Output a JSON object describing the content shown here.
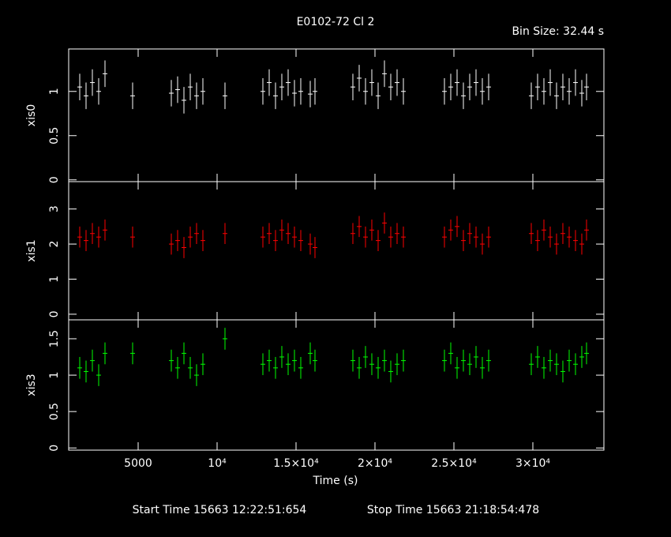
{
  "chart_data": [
    {
      "type": "errorbar",
      "title": "E0102-72 Cl 2",
      "subtitle": "Bin Size: 32.44 s",
      "ylabel": "xis0",
      "color": "#ffffff",
      "xlim": [
        600,
        34500
      ],
      "ylim": [
        -0.02,
        1.48
      ],
      "yticks": [
        0,
        0.5,
        1
      ],
      "yerr": 0.15,
      "x": [
        1300,
        1700,
        2100,
        2500,
        2900,
        4650,
        7100,
        7500,
        7900,
        8300,
        8700,
        9100,
        10500,
        12900,
        13300,
        13700,
        14100,
        14500,
        14900,
        15300,
        15900,
        16200,
        18600,
        19000,
        19400,
        19800,
        20200,
        20600,
        21000,
        21400,
        21800,
        24400,
        24800,
        25200,
        25600,
        26000,
        26400,
        26800,
        27200,
        29900,
        30300,
        30700,
        31100,
        31500,
        31900,
        32300,
        32700,
        33100,
        33400
      ],
      "values": [
        1.05,
        0.95,
        1.1,
        1.0,
        1.2,
        0.95,
        0.98,
        1.02,
        0.9,
        1.05,
        0.95,
        1.0,
        0.95,
        1.0,
        1.1,
        0.95,
        1.05,
        1.1,
        0.98,
        1.0,
        0.97,
        1.0,
        1.05,
        1.15,
        1.0,
        1.1,
        0.95,
        1.2,
        1.05,
        1.1,
        1.0,
        1.0,
        1.05,
        1.1,
        0.95,
        1.05,
        1.1,
        1.0,
        1.05,
        0.95,
        1.05,
        1.0,
        1.1,
        0.95,
        1.05,
        1.0,
        1.1,
        0.98,
        1.05
      ]
    },
    {
      "type": "errorbar",
      "ylabel": "xis1",
      "color": "#ff0000",
      "xlim": [
        600,
        34500
      ],
      "ylim": [
        -0.16,
        3.78
      ],
      "yticks": [
        0,
        1,
        2,
        3
      ],
      "yerr": 0.3,
      "x": [
        1300,
        1700,
        2100,
        2500,
        2900,
        4650,
        7100,
        7500,
        7900,
        8300,
        8700,
        9100,
        10500,
        12900,
        13300,
        13700,
        14100,
        14500,
        14900,
        15300,
        15900,
        16200,
        18600,
        19000,
        19400,
        19800,
        20200,
        20600,
        21000,
        21400,
        21800,
        24400,
        24800,
        25200,
        25600,
        26000,
        26400,
        26800,
        27200,
        29900,
        30300,
        30700,
        31100,
        31500,
        31900,
        32300,
        32700,
        33100,
        33400
      ],
      "values": [
        2.2,
        2.1,
        2.3,
        2.2,
        2.4,
        2.2,
        2.0,
        2.1,
        1.9,
        2.2,
        2.3,
        2.1,
        2.3,
        2.2,
        2.3,
        2.1,
        2.4,
        2.3,
        2.2,
        2.1,
        2.0,
        1.9,
        2.3,
        2.5,
        2.2,
        2.4,
        2.1,
        2.6,
        2.2,
        2.3,
        2.2,
        2.2,
        2.4,
        2.5,
        2.1,
        2.3,
        2.2,
        2.0,
        2.2,
        2.3,
        2.1,
        2.4,
        2.2,
        2.0,
        2.3,
        2.2,
        2.1,
        2.0,
        2.4
      ]
    },
    {
      "type": "errorbar",
      "ylabel": "xis3",
      "color": "#00ff00",
      "xlabel": "Time (s)",
      "start_time": "Start Time 15663 12:22:51:654",
      "stop_time": "Stop Time 15663 21:18:54:478",
      "xlim": [
        600,
        34500
      ],
      "ylim": [
        -0.03,
        1.76
      ],
      "yticks": [
        0,
        0.5,
        1,
        1.5
      ],
      "yerr": 0.15,
      "xticks": [
        5000,
        {
          "value": 10000,
          "label": "10⁴"
        },
        {
          "value": 15000,
          "label": "1.5×10⁴"
        },
        {
          "value": 20000,
          "label": "2×10⁴"
        },
        {
          "value": 25000,
          "label": "2.5×10⁴"
        },
        {
          "value": 30000,
          "label": "3×10⁴"
        }
      ],
      "x": [
        1300,
        1700,
        2100,
        2500,
        2900,
        4650,
        7100,
        7500,
        7900,
        8300,
        8700,
        9100,
        10500,
        12900,
        13300,
        13700,
        14100,
        14500,
        14900,
        15300,
        15900,
        16200,
        18600,
        19000,
        19400,
        19800,
        20200,
        20600,
        21000,
        21400,
        21800,
        24400,
        24800,
        25200,
        25600,
        26000,
        26400,
        26800,
        27200,
        29900,
        30300,
        30700,
        31100,
        31500,
        31900,
        32300,
        32700,
        33100,
        33400
      ],
      "values": [
        1.1,
        1.05,
        1.2,
        1.0,
        1.3,
        1.3,
        1.2,
        1.1,
        1.3,
        1.1,
        1.0,
        1.15,
        1.5,
        1.15,
        1.2,
        1.1,
        1.25,
        1.15,
        1.2,
        1.1,
        1.3,
        1.2,
        1.2,
        1.1,
        1.25,
        1.15,
        1.1,
        1.2,
        1.05,
        1.15,
        1.2,
        1.2,
        1.3,
        1.1,
        1.2,
        1.15,
        1.25,
        1.1,
        1.2,
        1.15,
        1.25,
        1.1,
        1.2,
        1.15,
        1.05,
        1.2,
        1.15,
        1.25,
        1.3
      ]
    }
  ]
}
